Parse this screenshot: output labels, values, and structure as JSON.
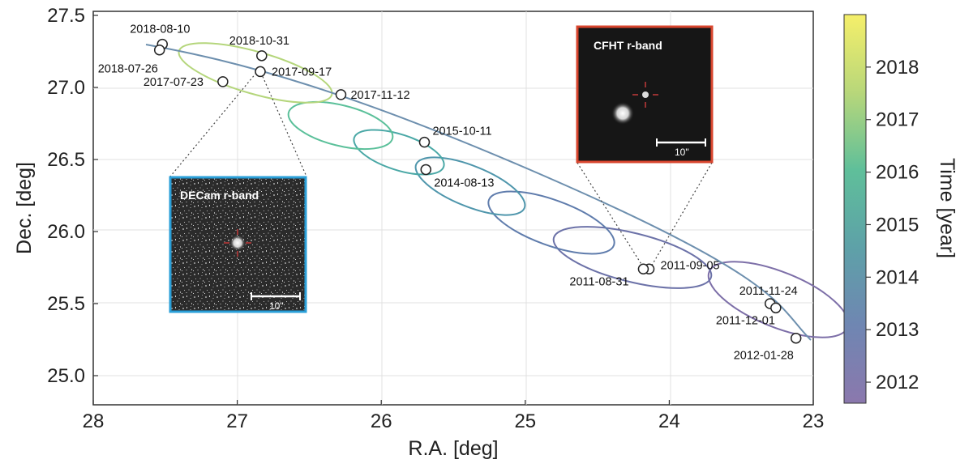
{
  "chart_data": {
    "type": "scatter",
    "xlabel": "R.A. [deg]",
    "ylabel": "Dec. [deg]",
    "xlim": [
      28,
      23
    ],
    "ylim": [
      24.8,
      27.5
    ],
    "x_ticks": [
      "28",
      "27",
      "26",
      "25",
      "24",
      "23"
    ],
    "y_ticks": [
      "25.0",
      "25.5",
      "26.0",
      "26.5",
      "27.0",
      "27.5"
    ],
    "grid": true,
    "colorbar": {
      "label": "Time [year]",
      "ticks": [
        "2012",
        "2013",
        "2014",
        "2015",
        "2016",
        "2017",
        "2018"
      ],
      "range": [
        2011.6,
        2019.0
      ],
      "colormap": "viridis"
    },
    "points": [
      {
        "label": "2018-08-10",
        "ra": 27.52,
        "dec": 27.3
      },
      {
        "label": "2018-07-26",
        "ra": 27.54,
        "dec": 27.26
      },
      {
        "label": "2018-10-31",
        "ra": 26.83,
        "dec": 27.22
      },
      {
        "label": "2017-09-17",
        "ra": 26.84,
        "dec": 27.11
      },
      {
        "label": "2017-07-23",
        "ra": 27.1,
        "dec": 27.04
      },
      {
        "label": "2017-11-12",
        "ra": 26.28,
        "dec": 26.95
      },
      {
        "label": "2015-10-11",
        "ra": 25.7,
        "dec": 26.62
      },
      {
        "label": "2014-08-13",
        "ra": 25.69,
        "dec": 26.43
      },
      {
        "label": "2011-09-05",
        "ra": 24.14,
        "dec": 25.74
      },
      {
        "label": "2011-08-31",
        "ra": 24.18,
        "dec": 25.74
      },
      {
        "label": "2011-11-24",
        "ra": 23.3,
        "dec": 25.5
      },
      {
        "label": "2011-12-01",
        "ra": 23.26,
        "dec": 25.47
      },
      {
        "label": "2012-01-28",
        "ra": 23.12,
        "dec": 25.26
      }
    ],
    "insets": [
      {
        "title": "DECam r-band",
        "scale": "10\"",
        "border_color": "#2a9fd8",
        "links_to_point": "2017-09-17"
      },
      {
        "title": "CFHT r-band",
        "scale": "10\"",
        "border_color": "#d8452e",
        "links_to_point": "2011-09-05"
      }
    ]
  }
}
